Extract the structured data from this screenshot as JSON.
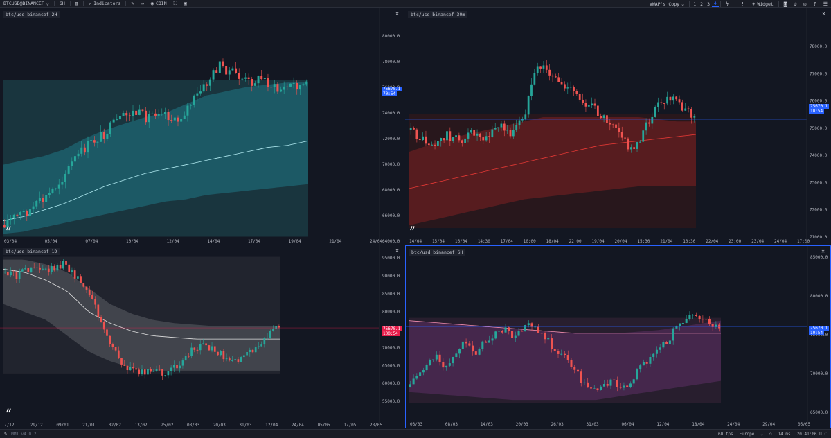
{
  "toolbar": {
    "symbol": "BTCUSD@BINANCEF",
    "timeframe": "6H",
    "indicators_label": "Indicators",
    "coin_label": "COIN",
    "template_label": "VWAP's Copy",
    "layout_numbers": [
      "1",
      "2",
      "3",
      "4"
    ],
    "widget_label": "Widget"
  },
  "panes": [
    {
      "title": "btc/usd binancef 2H",
      "price_tag": "75670.1",
      "countdown": "70:54",
      "y_ticks": [
        "80000.0",
        "78000.0",
        "76000.0",
        "74000.0",
        "72000.0",
        "70000.0",
        "68000.0",
        "66000.0",
        "64000.0"
      ],
      "x_ticks": [
        "03/04",
        "05/04",
        "07/04",
        "10/04",
        "12/04",
        "14/04",
        "17/04",
        "19/04",
        "21/04",
        "24/04"
      ],
      "accent": "#26c6da"
    },
    {
      "title": "btc/usd binancef 30m",
      "price_tag": "75670.1",
      "countdown": "10:54",
      "y_ticks": [
        "78000.0",
        "77000.0",
        "76000.0",
        "75000.0",
        "74000.0",
        "73000.0",
        "72000.0",
        "71000.0"
      ],
      "x_ticks": [
        "14/04",
        "15/04",
        "16/04",
        "14:30",
        "17/04",
        "10:00",
        "18/04",
        "22:00",
        "19/04",
        "20/04",
        "15:30",
        "21/04",
        "10:30",
        "22/04",
        "23:00",
        "23/04",
        "24/04",
        "17:00"
      ],
      "accent": "#c62828"
    },
    {
      "title": "btc/usd binancef 1D",
      "price_tag": "75670.1",
      "countdown": "100:54",
      "y_ticks": [
        "95000.0",
        "90000.0",
        "85000.0",
        "80000.0",
        "75000.0",
        "70000.0",
        "65000.0",
        "60000.0",
        "55000.0"
      ],
      "x_ticks": [
        "7/12",
        "29/12",
        "09/01",
        "21/01",
        "02/02",
        "13/02",
        "25/02",
        "08/03",
        "20/03",
        "31/03",
        "12/04",
        "24/04",
        "05/05",
        "17/05",
        "28/05"
      ],
      "accent": "#9e9e9e"
    },
    {
      "title": "btc/usd binancef 6H",
      "price_tag": "75670.1",
      "countdown": "10:54",
      "y_ticks": [
        "85000.0",
        "80000.0",
        "75000.0",
        "70000.0",
        "65000.0"
      ],
      "x_ticks": [
        "03/03",
        "08/03",
        "14/03",
        "20/03",
        "26/03",
        "31/03",
        "06/04",
        "12/04",
        "18/04",
        "24/04",
        "29/04",
        "05/05"
      ],
      "accent": "#ab47bc"
    }
  ],
  "statusbar": {
    "version": "MMT v4.0.2",
    "fps": "60 fps",
    "region": "Europe",
    "latency": "14 ms",
    "clock": "20:41:06 UTC"
  },
  "colors": {
    "background": "#131722",
    "up": "#26a69a",
    "down": "#ef5350",
    "tag_blue": "#2962ff",
    "tag_red": "#e91e4c"
  }
}
